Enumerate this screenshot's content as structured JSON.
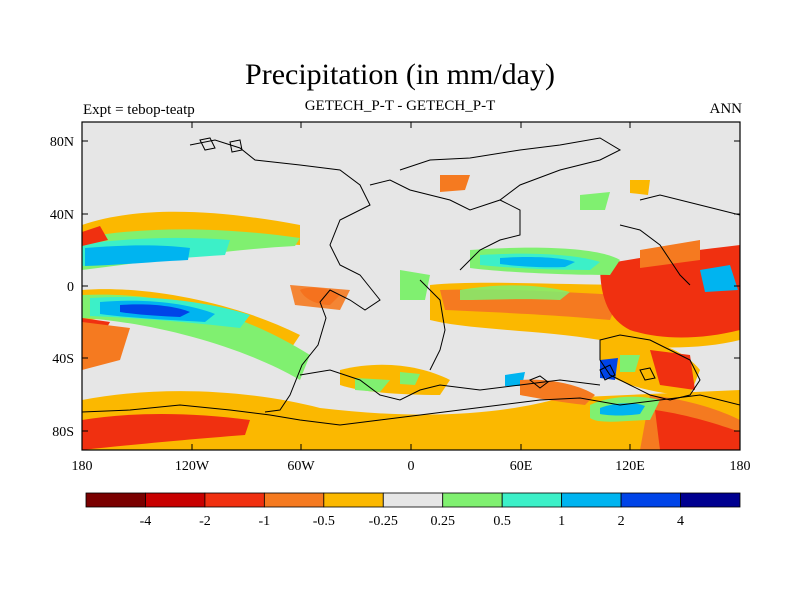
{
  "title": "Precipitation (in mm/day)",
  "subtitle_left": "Expt = tebop-teatp",
  "subtitle_center": "GETECH_P-T - GETECH_P-T",
  "subtitle_right": "ANN",
  "lat_labels": [
    "80N",
    "40N",
    "0",
    "40S",
    "80S"
  ],
  "lon_labels": [
    "180",
    "120W",
    "60W",
    "0",
    "60E",
    "120E",
    "180"
  ],
  "colorbar": {
    "colors": [
      "#7a0000",
      "#c80000",
      "#f03010",
      "#f57a20",
      "#fbb800",
      "#e6e6e6",
      "#80f070",
      "#3cf0c8",
      "#00b4f0",
      "#0044e8",
      "#000090"
    ],
    "labels": [
      "-4",
      "-2",
      "-1",
      "-0.5",
      "-0.25",
      "0.25",
      "0.5",
      "1",
      "2",
      "4"
    ]
  },
  "colors": {
    "background_field": "#e6e6e6",
    "coastline": "#000000"
  }
}
